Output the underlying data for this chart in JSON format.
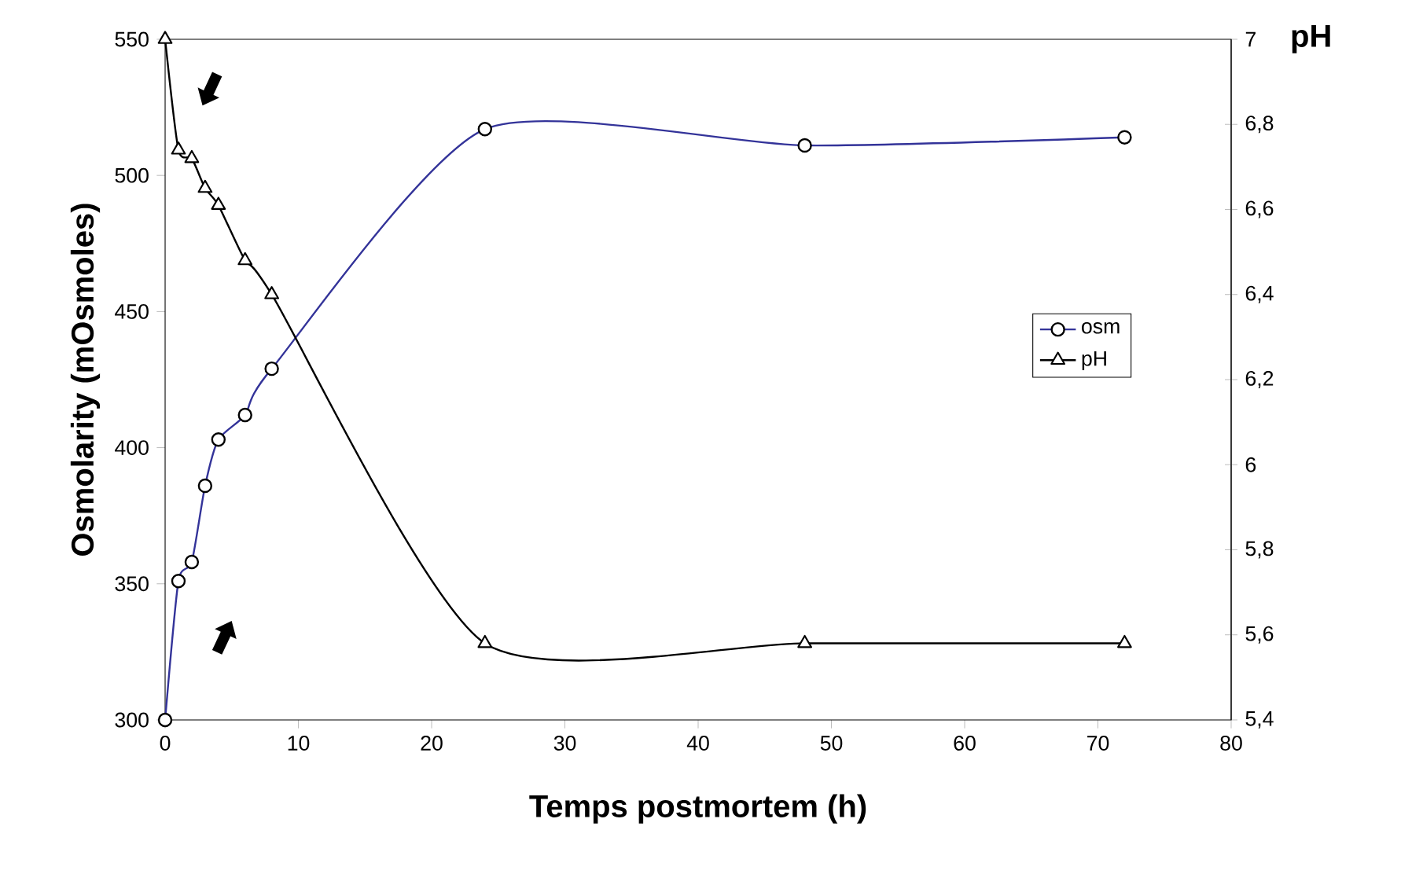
{
  "chart_data": {
    "type": "line",
    "xlabel": "Temps postmortem (h)",
    "ylabel": "Osmolarity (mOsmoles)",
    "y2label": "pH",
    "x": [
      0,
      1,
      2,
      3,
      4,
      6,
      8,
      24,
      48,
      72
    ],
    "xlim": [
      0,
      80
    ],
    "xticks": [
      0,
      10,
      20,
      30,
      40,
      50,
      60,
      70,
      80
    ],
    "ylim": [
      300,
      550
    ],
    "yticks": [
      300,
      350,
      400,
      450,
      500,
      550
    ],
    "y2lim": [
      5.4,
      7
    ],
    "y2ticks": [
      {
        "value": 5.4,
        "label": "5,4"
      },
      {
        "value": 5.6,
        "label": "5,6"
      },
      {
        "value": 5.8,
        "label": "5,8"
      },
      6,
      {
        "value": 6.2,
        "label": "6,2"
      },
      {
        "value": 6.4,
        "label": "6,4"
      },
      {
        "value": 6.6,
        "label": "6,6"
      },
      {
        "value": 6.8,
        "label": "6,8"
      },
      7
    ],
    "series": [
      {
        "name": "osm",
        "color": "#333399",
        "marker": "circle",
        "values": [
          300,
          351,
          358,
          386,
          403,
          412,
          429,
          517,
          511,
          514
        ]
      },
      {
        "name": "pH",
        "color": "#000000",
        "marker": "triangle",
        "axis": "y2",
        "values": [
          7.0,
          6.74,
          6.72,
          6.65,
          6.61,
          6.48,
          6.4,
          5.58,
          5.58,
          5.58
        ]
      }
    ],
    "legend": "right",
    "grid": false,
    "line_style": "solid"
  }
}
